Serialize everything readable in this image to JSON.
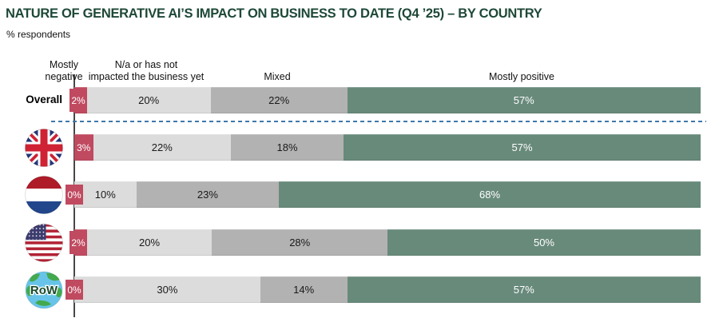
{
  "chart_data": {
    "type": "bar",
    "orientation": "horizontal",
    "stacked": true,
    "title": "NATURE OF GENERATIVE AI’S IMPACT ON BUSINESS TO DATE (Q4 ’25) – BY COUNTRY",
    "subtitle": "% respondents",
    "value_suffix": "%",
    "xlim": [
      0,
      100
    ],
    "legend_position": "top",
    "categories": [
      "Mostly negative",
      "N/a or has not impacted the business yet",
      "Mixed",
      "Mostly positive"
    ],
    "category_lines": [
      [
        "Mostly",
        "negative"
      ],
      [
        "N/a or has not",
        "impacted the business yet"
      ],
      [
        "Mixed"
      ],
      [
        "Mostly positive"
      ]
    ],
    "series_colors": [
      "#c04a60",
      "#dcdcdc",
      "#b2b2b2",
      "#688a7b"
    ],
    "label_colors": [
      "#ffffff",
      "#1a1a1a",
      "#1a1a1a",
      "#ffffff"
    ],
    "title_color": "#1e4837",
    "axis_color": "#474747",
    "divider_color": "#3e78ad",
    "rows": [
      {
        "label": "Overall",
        "icon": "overall-label",
        "values": [
          2,
          20,
          22,
          57
        ]
      },
      {
        "label": "UK",
        "icon": "uk-flag-icon",
        "values": [
          3,
          22,
          18,
          57
        ]
      },
      {
        "label": "Netherlands",
        "icon": "netherlands-flag-icon",
        "values": [
          0,
          10,
          23,
          68
        ]
      },
      {
        "label": "US",
        "icon": "us-flag-icon",
        "values": [
          2,
          20,
          28,
          50
        ]
      },
      {
        "label": "RoW",
        "icon": "row-globe-icon",
        "values": [
          0,
          30,
          14,
          57
        ]
      }
    ],
    "row_globe_label": "RoW"
  }
}
